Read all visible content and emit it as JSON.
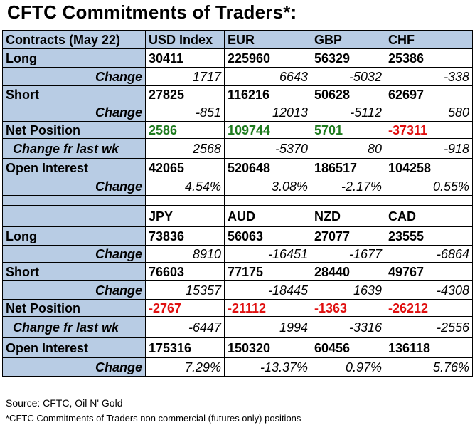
{
  "title": "CFTC Commitments of Traders*:",
  "table1": {
    "header": [
      "Contracts (May 22)",
      "USD Index",
      "EUR",
      "GBP",
      "CHF"
    ],
    "long": {
      "label": "Long",
      "values": [
        "30411",
        "225960",
        "56329",
        "25386"
      ]
    },
    "long_change": {
      "label": "Change",
      "values": [
        "1717",
        "6643",
        "-5032",
        "-338"
      ]
    },
    "short": {
      "label": "Short",
      "values": [
        "27825",
        "116216",
        "50628",
        "62697"
      ]
    },
    "short_change": {
      "label": "Change",
      "values": [
        "-851",
        "12013",
        "-5112",
        "580"
      ]
    },
    "net": {
      "label": "Net Position",
      "values": [
        "2586",
        "109744",
        "5701",
        "-37311"
      ],
      "colors": [
        "#1e7b1e",
        "#1e7b1e",
        "#1e7b1e",
        "#e01010"
      ]
    },
    "net_change": {
      "label": "Change fr last wk",
      "values": [
        "2568",
        "-5370",
        "80",
        "-918"
      ]
    },
    "oi": {
      "label": "Open Interest",
      "values": [
        "42065",
        "520648",
        "186517",
        "104258"
      ]
    },
    "oi_change": {
      "label": "Change",
      "values": [
        "4.54%",
        "3.08%",
        "-2.17%",
        "0.55%"
      ]
    }
  },
  "table2": {
    "header": [
      "",
      "JPY",
      "AUD",
      "NZD",
      "CAD"
    ],
    "long": {
      "label": "Long",
      "values": [
        "73836",
        "56063",
        "27077",
        "23555"
      ]
    },
    "long_change": {
      "label": "Change",
      "values": [
        "8910",
        "-16451",
        "-1677",
        "-6864"
      ]
    },
    "short": {
      "label": "Short",
      "values": [
        "76603",
        "77175",
        "28440",
        "49767"
      ]
    },
    "short_change": {
      "label": "Change",
      "values": [
        "15357",
        "-18445",
        "1639",
        "-4308"
      ]
    },
    "net": {
      "label": "Net Position",
      "values": [
        "-2767",
        "-21112",
        "-1363",
        "-26212"
      ],
      "colors": [
        "#e01010",
        "#e01010",
        "#e01010",
        "#e01010"
      ]
    },
    "net_change": {
      "label": "Change fr last wk",
      "values": [
        "-6447",
        "1994",
        "-3316",
        "-2556"
      ]
    },
    "oi": {
      "label": "Open Interest",
      "values": [
        "175316",
        "150320",
        "60456",
        "136118"
      ]
    },
    "oi_change": {
      "label": "Change",
      "values": [
        "7.29%",
        "-13.37%",
        "0.97%",
        "5.76%"
      ]
    }
  },
  "source": "Source: CFTC, Oil N' Gold",
  "footnote": "*CFTC Commitments of Traders non commercial (futures only) positions"
}
